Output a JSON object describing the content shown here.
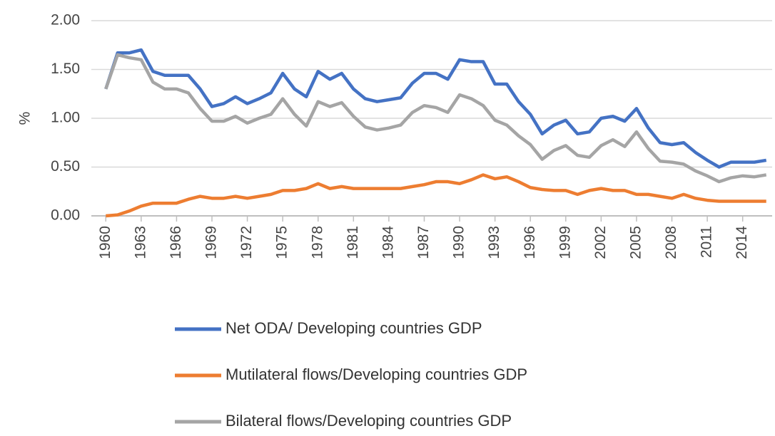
{
  "chart_data": {
    "type": "line",
    "ylabel": "%",
    "x": [
      1960,
      1961,
      1962,
      1963,
      1964,
      1965,
      1966,
      1967,
      1968,
      1969,
      1970,
      1971,
      1972,
      1973,
      1974,
      1975,
      1976,
      1977,
      1978,
      1979,
      1980,
      1981,
      1982,
      1983,
      1984,
      1985,
      1986,
      1987,
      1988,
      1989,
      1990,
      1991,
      1992,
      1993,
      1994,
      1995,
      1996,
      1997,
      1998,
      1999,
      2000,
      2001,
      2002,
      2003,
      2004,
      2005,
      2006,
      2007,
      2008,
      2009,
      2010,
      2011,
      2012,
      2013,
      2014,
      2015,
      2016
    ],
    "xlim": [
      1959.5,
      2016.5
    ],
    "xticks": [
      1960,
      1963,
      1966,
      1969,
      1972,
      1975,
      1978,
      1981,
      1984,
      1987,
      1990,
      1993,
      1996,
      1999,
      2002,
      2005,
      2008,
      2011,
      2014
    ],
    "ylim": [
      0,
      2
    ],
    "yticks": [
      {
        "value": 0,
        "label": "0.00"
      },
      {
        "value": 0.5,
        "label": "0.50"
      },
      {
        "value": 1,
        "label": "1.00"
      },
      {
        "value": 1.5,
        "label": "1.50"
      },
      {
        "value": 2,
        "label": "2.00"
      }
    ],
    "grid": true,
    "legend": "bottom",
    "series": [
      {
        "name": "Net ODA/ Developing countries GDP",
        "color": "#4472c4",
        "values": [
          1.3,
          1.67,
          1.67,
          1.7,
          1.48,
          1.44,
          1.44,
          1.44,
          1.3,
          1.12,
          1.15,
          1.22,
          1.15,
          1.2,
          1.26,
          1.46,
          1.3,
          1.22,
          1.48,
          1.4,
          1.46,
          1.3,
          1.2,
          1.17,
          1.19,
          1.21,
          1.36,
          1.46,
          1.46,
          1.4,
          1.6,
          1.58,
          1.58,
          1.35,
          1.35,
          1.17,
          1.04,
          0.84,
          0.93,
          0.98,
          0.84,
          0.86,
          1.0,
          1.02,
          0.97,
          1.1,
          0.9,
          0.75,
          0.73,
          0.75,
          0.65,
          0.57,
          0.5,
          0.55,
          0.55,
          0.55,
          0.57
        ]
      },
      {
        "name": "Mutilateral flows/Developing countries GDP",
        "color": "#ed7d31",
        "values": [
          0.0,
          0.01,
          0.05,
          0.1,
          0.13,
          0.13,
          0.13,
          0.17,
          0.2,
          0.18,
          0.18,
          0.2,
          0.18,
          0.2,
          0.22,
          0.26,
          0.26,
          0.28,
          0.33,
          0.28,
          0.3,
          0.28,
          0.28,
          0.28,
          0.28,
          0.28,
          0.3,
          0.32,
          0.35,
          0.35,
          0.33,
          0.37,
          0.42,
          0.38,
          0.4,
          0.35,
          0.29,
          0.27,
          0.26,
          0.26,
          0.22,
          0.26,
          0.28,
          0.26,
          0.26,
          0.22,
          0.22,
          0.2,
          0.18,
          0.22,
          0.18,
          0.16,
          0.15,
          0.15,
          0.15,
          0.15,
          0.15
        ]
      },
      {
        "name": "Bilateral flows/Developing countries GDP",
        "color": "#a5a5a5",
        "values": [
          1.3,
          1.65,
          1.62,
          1.6,
          1.37,
          1.3,
          1.3,
          1.26,
          1.1,
          0.97,
          0.97,
          1.02,
          0.95,
          1.0,
          1.04,
          1.2,
          1.04,
          0.92,
          1.17,
          1.12,
          1.16,
          1.02,
          0.91,
          0.88,
          0.9,
          0.93,
          1.06,
          1.13,
          1.11,
          1.06,
          1.24,
          1.2,
          1.13,
          0.98,
          0.93,
          0.82,
          0.73,
          0.58,
          0.67,
          0.72,
          0.62,
          0.6,
          0.72,
          0.78,
          0.71,
          0.86,
          0.69,
          0.56,
          0.55,
          0.53,
          0.46,
          0.41,
          0.35,
          0.39,
          0.41,
          0.4,
          0.42
        ]
      }
    ]
  }
}
